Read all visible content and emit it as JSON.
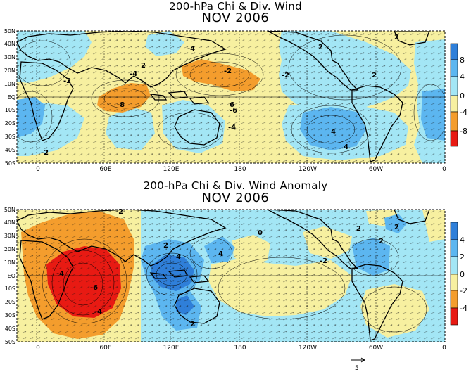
{
  "panels": [
    {
      "title": "200-hPa Chi & Div. Wind",
      "subtitle": "NOV 2006",
      "lat_labels": [
        "50N",
        "40N",
        "30N",
        "20N",
        "10N",
        "EQ",
        "10S",
        "20S",
        "30S",
        "40S",
        "50S"
      ],
      "lon_labels": [
        "0",
        "60E",
        "120E",
        "180",
        "120W",
        "60W",
        "0"
      ],
      "colorbar_labels": [
        "8",
        "4",
        "0",
        "-4",
        "-8"
      ],
      "colorbar_colors": [
        "#2f7fd9",
        "#5cb6f0",
        "#a3e6f5",
        "#f7f0a0",
        "#f49d2d",
        "#e81a13"
      ],
      "contour_labels": [
        "-2",
        "2",
        "-4",
        "-6",
        "-8",
        "-2",
        "-4",
        "4",
        "6",
        "2",
        "2",
        "4",
        "-2",
        "-2",
        "2",
        "-4"
      ]
    },
    {
      "title": "200-hPa Chi & Div. Wind Anomaly",
      "subtitle": "NOV 2006",
      "lat_labels": [
        "50N",
        "40N",
        "30N",
        "20N",
        "10N",
        "EQ",
        "10S",
        "20S",
        "30S",
        "40S",
        "50S"
      ],
      "lon_labels": [
        "0",
        "60E",
        "120E",
        "180",
        "120W",
        "60W",
        "0"
      ],
      "colorbar_labels": [
        "4",
        "2",
        "0",
        "-2",
        "-4"
      ],
      "colorbar_colors": [
        "#2f7fd9",
        "#5cb6f0",
        "#a3e6f5",
        "#f7f0a0",
        "#f49d2d",
        "#e81a13"
      ],
      "contour_labels": [
        "-2",
        "-4",
        "-6",
        "-4",
        "4",
        "2",
        "4",
        "2",
        "2",
        "-2",
        "2",
        "2",
        "0"
      ]
    }
  ],
  "reference_vector_label": "5",
  "colors": {
    "yellow": "#f7f0a0",
    "light_blue": "#a3e6f5",
    "mid_blue": "#5cb6f0",
    "dark_blue": "#2f7fd9",
    "orange": "#f49d2d",
    "red": "#e81a13"
  }
}
